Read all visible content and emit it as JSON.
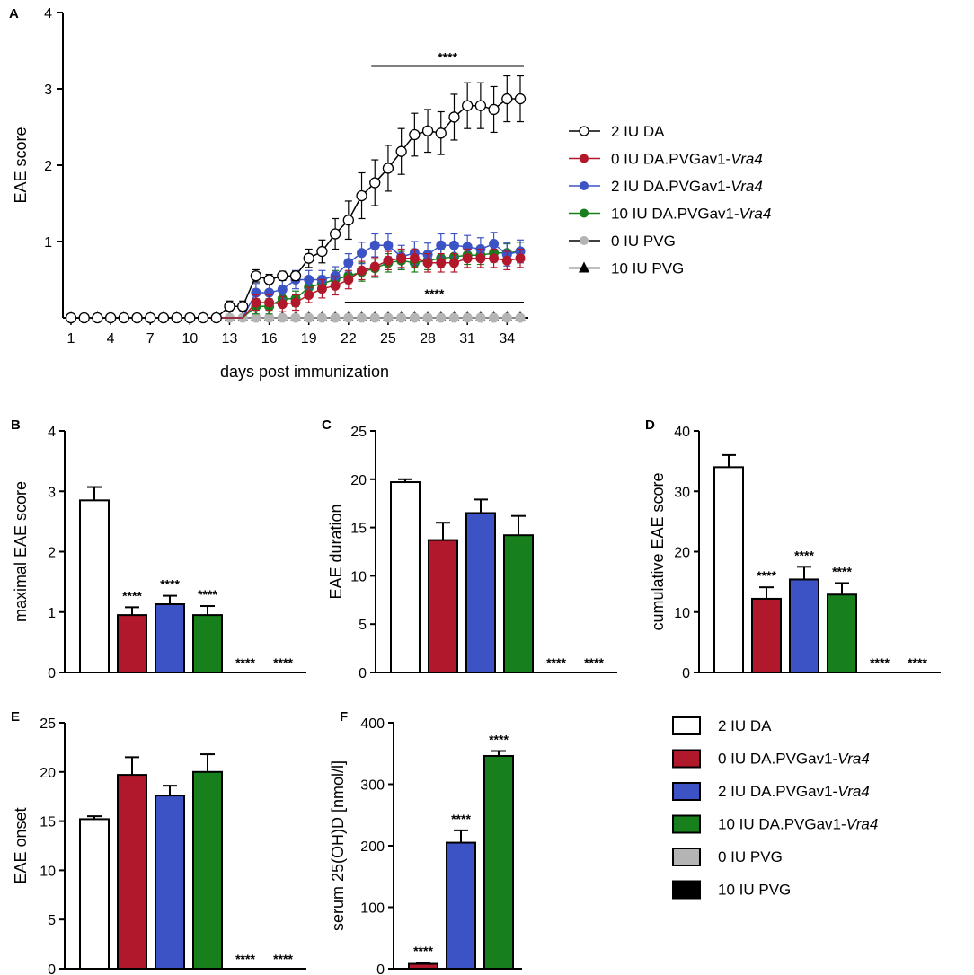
{
  "colors": {
    "da2": "#ffffff",
    "vra0": "#b2182b",
    "vra2": "#3b53c4",
    "vra10": "#17801c",
    "pvg0": "#b4b4b4",
    "pvg10": "#000000",
    "line": "#000000"
  },
  "legend_top": [
    {
      "prefix": "2 IU DA",
      "italic": "",
      "marker": "open-circle",
      "color": "#000000"
    },
    {
      "prefix": "0 IU DA.PVGav1-",
      "italic": "Vra4",
      "marker": "filled-circle",
      "color": "#b2182b"
    },
    {
      "prefix": "2 IU DA.PVGav1-",
      "italic": "Vra4",
      "marker": "filled-circle",
      "color": "#3b53c4"
    },
    {
      "prefix": "10 IU DA.PVGav1-",
      "italic": "Vra4",
      "marker": "filled-circle",
      "color": "#17801c"
    },
    {
      "prefix": "0 IU PVG",
      "italic": "",
      "marker": "filled-circle",
      "color": "#b4b4b4"
    },
    {
      "prefix": "10 IU PVG",
      "italic": "",
      "marker": "triangle",
      "color": "#000000"
    }
  ],
  "legend_bottom": [
    {
      "prefix": "2 IU DA",
      "italic": "",
      "color": "#ffffff"
    },
    {
      "prefix": "0 IU DA.PVGav1-",
      "italic": "Vra4",
      "color": "#b2182b"
    },
    {
      "prefix": "2 IU DA.PVGav1-",
      "italic": "Vra4",
      "color": "#3b53c4"
    },
    {
      "prefix": "10 IU DA.PVGav1-",
      "italic": "Vra4",
      "color": "#17801c"
    },
    {
      "prefix": "0 IU PVG",
      "italic": "",
      "color": "#b4b4b4"
    },
    {
      "prefix": "10 IU PVG",
      "italic": "",
      "color": "#000000"
    }
  ],
  "chart_data": [
    {
      "panel": "A",
      "type": "line",
      "xlabel": "days post immunization",
      "ylabel": "EAE score",
      "xlim": [
        0,
        35
      ],
      "ylim": [
        0,
        4
      ],
      "xticks": [
        1,
        4,
        7,
        10,
        13,
        16,
        19,
        22,
        25,
        28,
        31,
        34
      ],
      "yticks": [
        1,
        2,
        3,
        4
      ],
      "x": [
        1,
        2,
        3,
        4,
        5,
        6,
        7,
        8,
        9,
        10,
        11,
        12,
        13,
        14,
        15,
        16,
        17,
        18,
        19,
        20,
        21,
        22,
        23,
        24,
        25,
        26,
        27,
        28,
        29,
        30,
        31,
        32,
        33,
        34,
        35
      ],
      "series": [
        {
          "name": "2 IU DA",
          "marker": "open-circle",
          "values": [
            0,
            0,
            0,
            0,
            0,
            0,
            0,
            0,
            0,
            0,
            0,
            0,
            0.15,
            0.15,
            0.55,
            0.5,
            0.55,
            0.55,
            0.78,
            0.87,
            1.1,
            1.28,
            1.6,
            1.77,
            1.96,
            2.18,
            2.4,
            2.45,
            2.42,
            2.63,
            2.78,
            2.78,
            2.73,
            2.87,
            2.87
          ],
          "errors": [
            0,
            0,
            0,
            0,
            0,
            0,
            0,
            0,
            0,
            0,
            0,
            0,
            0.07,
            0.07,
            0.08,
            0.07,
            0.06,
            0.06,
            0.12,
            0.15,
            0.2,
            0.25,
            0.3,
            0.3,
            0.3,
            0.3,
            0.28,
            0.28,
            0.28,
            0.3,
            0.3,
            0.3,
            0.3,
            0.3,
            0.3
          ]
        },
        {
          "name": "0 IU DA.PVGav1-Vra4",
          "marker": "filled-circle",
          "values": [
            0,
            0,
            0,
            0,
            0,
            0,
            0,
            0,
            0,
            0,
            0,
            0,
            0,
            0,
            0.2,
            0.2,
            0.18,
            0.2,
            0.3,
            0.38,
            0.42,
            0.5,
            0.62,
            0.67,
            0.75,
            0.78,
            0.78,
            0.72,
            0.72,
            0.72,
            0.78,
            0.78,
            0.78,
            0.75,
            0.78
          ],
          "errors": [
            0,
            0,
            0,
            0,
            0,
            0,
            0,
            0,
            0,
            0,
            0,
            0,
            0,
            0,
            0.1,
            0.1,
            0.1,
            0.1,
            0.1,
            0.12,
            0.12,
            0.12,
            0.12,
            0.12,
            0.12,
            0.12,
            0.12,
            0.12,
            0.12,
            0.12,
            0.12,
            0.12,
            0.12,
            0.12,
            0.12
          ]
        },
        {
          "name": "2 IU DA.PVGav1-Vra4",
          "marker": "filled-circle",
          "values": [
            0,
            0,
            0,
            0,
            0,
            0,
            0,
            0,
            0,
            0,
            0,
            0,
            0,
            0,
            0.33,
            0.33,
            0.37,
            0.5,
            0.5,
            0.5,
            0.55,
            0.72,
            0.85,
            0.95,
            0.95,
            0.8,
            0.85,
            0.83,
            0.95,
            0.95,
            0.93,
            0.9,
            0.97,
            0.83,
            0.87
          ],
          "errors": [
            0,
            0,
            0,
            0,
            0,
            0,
            0,
            0,
            0,
            0,
            0,
            0,
            0,
            0,
            0.12,
            0.12,
            0.12,
            0.12,
            0.12,
            0.12,
            0.12,
            0.12,
            0.14,
            0.15,
            0.15,
            0.15,
            0.15,
            0.15,
            0.15,
            0.15,
            0.15,
            0.15,
            0.15,
            0.15,
            0.15
          ]
        },
        {
          "name": "10 IU DA.PVGav1-Vra4",
          "marker": "filled-circle",
          "values": [
            0,
            0,
            0,
            0,
            0,
            0,
            0,
            0,
            0,
            0,
            0,
            0,
            0,
            0,
            0.15,
            0.15,
            0.25,
            0.25,
            0.4,
            0.45,
            0.5,
            0.55,
            0.6,
            0.65,
            0.72,
            0.75,
            0.72,
            0.75,
            0.78,
            0.8,
            0.82,
            0.82,
            0.85,
            0.85,
            0.87
          ],
          "errors": [
            0,
            0,
            0,
            0,
            0,
            0,
            0,
            0,
            0,
            0,
            0,
            0,
            0,
            0,
            0.1,
            0.1,
            0.1,
            0.1,
            0.1,
            0.1,
            0.12,
            0.12,
            0.12,
            0.12,
            0.12,
            0.12,
            0.12,
            0.12,
            0.12,
            0.12,
            0.12,
            0.12,
            0.12,
            0.12,
            0.12
          ]
        },
        {
          "name": "0 IU PVG",
          "marker": "filled-circle",
          "values": [
            0,
            0,
            0,
            0,
            0,
            0,
            0,
            0,
            0,
            0,
            0,
            0,
            0,
            0,
            0,
            0,
            0,
            0,
            0,
            0,
            0,
            0,
            0,
            0,
            0,
            0,
            0,
            0,
            0,
            0,
            0,
            0,
            0,
            0,
            0
          ]
        },
        {
          "name": "10 IU PVG",
          "marker": "triangle",
          "values": [
            0,
            0,
            0,
            0,
            0,
            0,
            0,
            0,
            0,
            0,
            0,
            0,
            0,
            0,
            0,
            0,
            0,
            0,
            0,
            0,
            0,
            0,
            0,
            0,
            0,
            0,
            0,
            0,
            0,
            0,
            0,
            0,
            0,
            0,
            0
          ]
        }
      ],
      "annotations": [
        {
          "text": "****",
          "x_from": 24,
          "x_to": 35,
          "y": 3.3
        },
        {
          "text": "****",
          "x_from": 22,
          "x_to": 35,
          "y": 0.2
        }
      ]
    },
    {
      "panel": "B",
      "type": "bar",
      "ylabel": "maximal EAE score",
      "ylim": [
        0,
        4
      ],
      "yticks": [
        0,
        1,
        2,
        3,
        4
      ],
      "categories": [
        "2 IU DA",
        "0 IU DA.PVGav1-Vra4",
        "2 IU DA.PVGav1-Vra4",
        "10 IU DA.PVGav1-Vra4",
        "0 IU PVG",
        "10 IU PVG"
      ],
      "values": [
        2.85,
        0.95,
        1.13,
        0.95,
        0,
        0
      ],
      "errors": [
        0.22,
        0.13,
        0.14,
        0.15,
        0,
        0
      ],
      "labels": [
        "",
        "****",
        "****",
        "****",
        "****",
        "****"
      ]
    },
    {
      "panel": "C",
      "type": "bar",
      "ylabel": "EAE duration",
      "ylim": [
        0,
        25
      ],
      "yticks": [
        0,
        5,
        10,
        15,
        20,
        25
      ],
      "categories": [
        "2 IU DA",
        "0 IU DA.PVGav1-Vra4",
        "2 IU DA.PVGav1-Vra4",
        "10 IU DA.PVGav1-Vra4",
        "0 IU PVG",
        "10 IU PVG"
      ],
      "values": [
        19.7,
        13.7,
        16.5,
        14.2,
        0,
        0
      ],
      "errors": [
        0.3,
        1.8,
        1.4,
        2.0,
        0,
        0
      ],
      "labels": [
        "",
        "",
        "",
        "",
        "****",
        "****"
      ]
    },
    {
      "panel": "D",
      "type": "bar",
      "ylabel": "cumulative EAE score",
      "ylim": [
        0,
        40
      ],
      "yticks": [
        0,
        10,
        20,
        30,
        40
      ],
      "categories": [
        "2 IU DA",
        "0 IU DA.PVGav1-Vra4",
        "2 IU DA.PVGav1-Vra4",
        "10 IU DA.PVGav1-Vra4",
        "0 IU PVG",
        "10 IU PVG"
      ],
      "values": [
        34,
        12.2,
        15.4,
        12.9,
        0,
        0
      ],
      "errors": [
        2.0,
        1.9,
        2.1,
        1.9,
        0,
        0
      ],
      "labels": [
        "",
        "****",
        "****",
        "****",
        "****",
        "****"
      ]
    },
    {
      "panel": "E",
      "type": "bar",
      "ylabel": "EAE onset",
      "ylim": [
        0,
        25
      ],
      "yticks": [
        0,
        5,
        10,
        15,
        20,
        25
      ],
      "categories": [
        "2 IU DA",
        "0 IU DA.PVGav1-Vra4",
        "2 IU DA.PVGav1-Vra4",
        "10 IU DA.PVGav1-Vra4",
        "0 IU PVG",
        "10 IU PVG"
      ],
      "values": [
        15.2,
        19.7,
        17.6,
        20.0,
        0,
        0
      ],
      "errors": [
        0.3,
        1.8,
        1.0,
        1.8,
        0,
        0
      ],
      "labels": [
        "",
        "",
        "",
        "",
        "****",
        "****"
      ]
    },
    {
      "panel": "F",
      "type": "bar",
      "ylabel": "serum 25(OH)D [nmol/l]",
      "ylim": [
        0,
        400
      ],
      "yticks": [
        0,
        100,
        200,
        300,
        400
      ],
      "categories": [
        "0 IU DA.PVGav1-Vra4",
        "2 IU DA.PVGav1-Vra4",
        "10 IU DA.PVGav1-Vra4"
      ],
      "values": [
        8,
        205,
        346
      ],
      "errors": [
        2,
        20,
        8
      ],
      "labels": [
        "****",
        "****",
        "****"
      ]
    }
  ]
}
